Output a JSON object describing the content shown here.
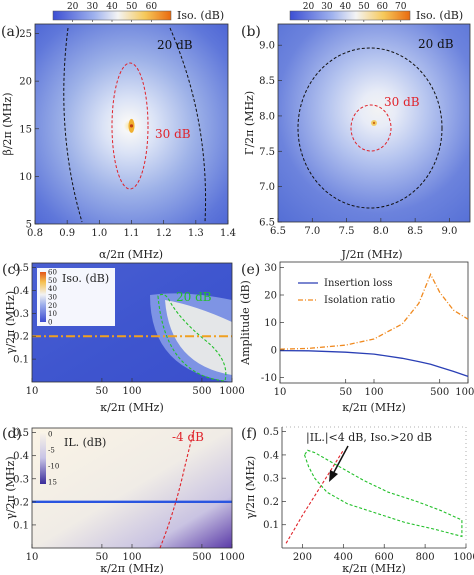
{
  "chart_data": [
    {
      "type": "heatmap",
      "panel_label": "(a)",
      "colorbar": {
        "ticks": [
          "20",
          "30",
          "40",
          "50",
          "60"
        ],
        "title": "Iso. (dB)",
        "range": [
          10,
          70
        ]
      },
      "xlabel": "α/2π (MHz)",
      "ylabel": "β/2π (MHz)",
      "xticks": [
        "0.8",
        "0.9",
        "1.0",
        "1.1",
        "1.2",
        "1.3",
        "1.4"
      ],
      "yticks": [
        "5",
        "10",
        "15",
        "20",
        "25"
      ],
      "xlim": [
        0.8,
        1.4
      ],
      "ylim": [
        5,
        26
      ],
      "peak": {
        "x": 1.1,
        "y": 15.3,
        "value": 65
      },
      "contours": [
        {
          "label": "30 dB",
          "color": "#e0232a"
        },
        {
          "label": "20 dB",
          "color": "#111111"
        }
      ]
    },
    {
      "type": "heatmap",
      "panel_label": "(b)",
      "colorbar": {
        "ticks": [
          "20",
          "30",
          "40",
          "50",
          "60",
          "70"
        ],
        "title": "Iso. (dB)",
        "range": [
          10,
          75
        ]
      },
      "xlabel": "J/2π (MHz)",
      "ylabel": "Γ/2π (MHz)",
      "xticks": [
        "6.5",
        "7.0",
        "7.5",
        "8.0",
        "8.5",
        "9.0"
      ],
      "yticks": [
        "6.5",
        "7.0",
        "7.5",
        "8.0",
        "8.5",
        "9.0"
      ],
      "xlim": [
        6.5,
        9.3
      ],
      "ylim": [
        6.5,
        9.3
      ],
      "peak": {
        "x": 7.9,
        "y": 7.9,
        "value": 72
      },
      "contours": [
        {
          "label": "30 dB",
          "color": "#e0232a"
        },
        {
          "label": "20 dB",
          "color": "#111111"
        }
      ]
    },
    {
      "type": "heatmap",
      "panel_label": "(c)",
      "legend_title": "Iso. (dB)",
      "colorbar": {
        "ticks": [
          "0",
          "10",
          "20",
          "30",
          "40",
          "50",
          "60"
        ]
      },
      "xlabel": "κ/2π (MHz)",
      "ylabel": "γ/2π (MHz)",
      "xticks": [
        "10",
        "50",
        "100",
        "500",
        "1000"
      ],
      "yticks": [
        "0.1",
        "0.2",
        "0.3",
        "0.4",
        "0.5"
      ],
      "xscale": "log",
      "xlim": [
        10,
        1000
      ],
      "ylim": [
        0,
        0.52
      ],
      "hline": {
        "y": 0.2,
        "color": "#f0a020",
        "style": "dash-dot"
      },
      "contours": [
        {
          "label": "20 dB",
          "color": "#22c02a"
        }
      ]
    },
    {
      "type": "line",
      "panel_label": "(e)",
      "xlabel": "κ/2π (MHz)",
      "ylabel": "Amplitude (dB)",
      "xscale": "log",
      "xticks": [
        "10",
        "50",
        "100",
        "500",
        "1000"
      ],
      "yticks": [
        "-10",
        "0",
        "10",
        "20",
        "30"
      ],
      "xlim": [
        10,
        1000
      ],
      "ylim": [
        -12,
        32
      ],
      "legend": "top-center",
      "x": [
        10,
        20,
        50,
        100,
        200,
        300,
        400,
        500,
        700,
        1000
      ],
      "series": [
        {
          "name": "Insertion loss",
          "color": "#2a3fb5",
          "style": "solid",
          "values": [
            -0.2,
            -0.3,
            -0.8,
            -1.5,
            -3.0,
            -4.2,
            -5.2,
            -6.2,
            -7.8,
            -9.6
          ]
        },
        {
          "name": "Isolation ratio",
          "color": "#f08a20",
          "style": "dash-dot",
          "values": [
            0.3,
            0.6,
            1.8,
            4.0,
            9.5,
            17.0,
            27.5,
            21.0,
            14.5,
            11.2
          ]
        }
      ]
    },
    {
      "type": "heatmap",
      "panel_label": "(d)",
      "legend_title": "IL. (dB)",
      "colorbar": {
        "ticks": [
          "0",
          "-5",
          "-10",
          "15"
        ]
      },
      "xlabel": "κ/2π (MHz)",
      "ylabel": "γ/2π (MHz)",
      "xticks": [
        "10",
        "50",
        "100",
        "500",
        "1000"
      ],
      "yticks": [
        "0.1",
        "0.2",
        "0.3",
        "0.4",
        "0.5"
      ],
      "xscale": "log",
      "xlim": [
        10,
        1000
      ],
      "ylim": [
        0,
        0.52
      ],
      "hline": {
        "y": 0.2,
        "color": "#2a55e0",
        "style": "solid"
      },
      "contours": [
        {
          "label": "-4 dB",
          "color": "#e0232a"
        }
      ]
    },
    {
      "type": "scatter",
      "panel_label": "(f)",
      "annotation": "|IL.|<4 dB, Iso.>20 dB",
      "xlabel": "κ/2π (MHz)",
      "ylabel": "γ/2π (MHz)",
      "xticks": [
        "200",
        "400",
        "600",
        "800",
        "1000"
      ],
      "yticks": [
        "0.1",
        "0.2",
        "0.3",
        "0.4",
        "0.5"
      ],
      "xlim": [
        100,
        1000
      ],
      "ylim": [
        0,
        0.52
      ],
      "series": [
        {
          "name": "",
          "color": "#e0232a",
          "style": "dashed",
          "x": [
            120,
            160,
            200,
            250,
            300,
            350,
            400
          ],
          "y": [
            0.02,
            0.08,
            0.14,
            0.21,
            0.28,
            0.35,
            0.42
          ]
        },
        {
          "name": "",
          "color": "#22c02a",
          "style": "dashed",
          "x": [
            210,
            230,
            260,
            320,
            420,
            560,
            700,
            850,
            980,
            980,
            880,
            760,
            620,
            500,
            400,
            320,
            260,
            225,
            210
          ],
          "y": [
            0.4,
            0.35,
            0.3,
            0.24,
            0.19,
            0.15,
            0.11,
            0.08,
            0.05,
            0.12,
            0.16,
            0.2,
            0.24,
            0.29,
            0.34,
            0.38,
            0.41,
            0.42,
            0.4
          ]
        }
      ]
    }
  ]
}
